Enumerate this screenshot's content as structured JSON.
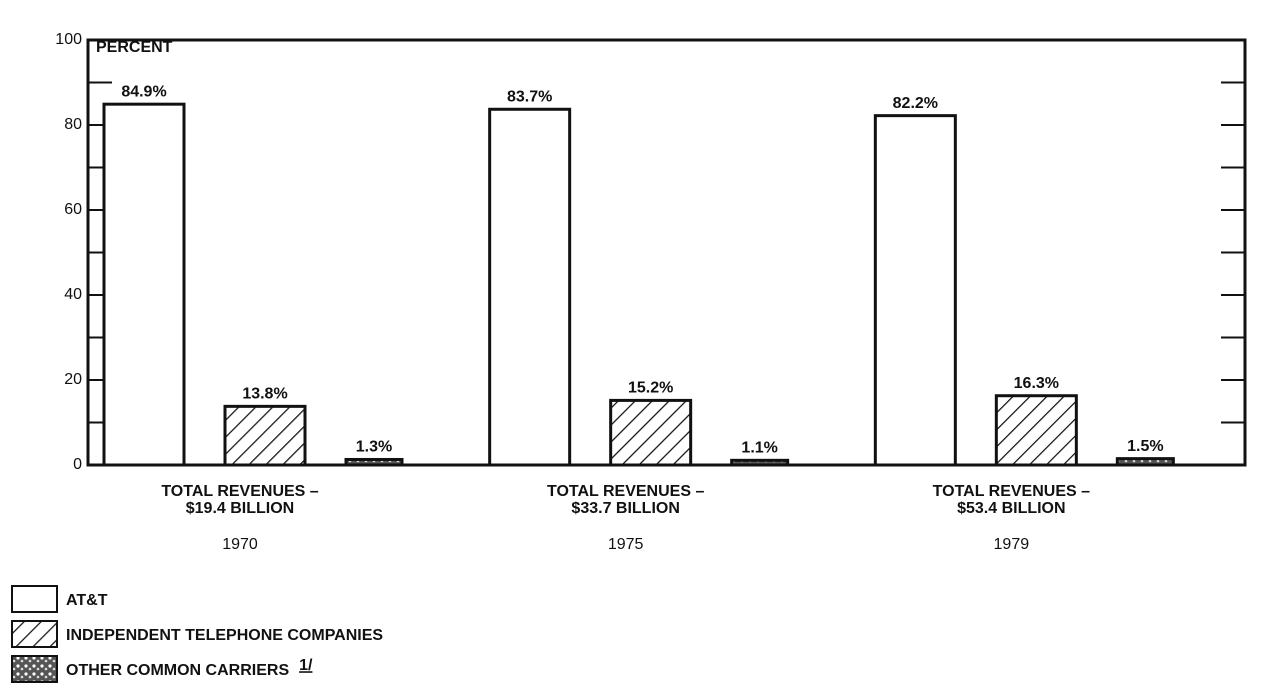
{
  "chart_data": {
    "type": "bar",
    "y_axis_label": "PERCENT",
    "categories": [
      "1970",
      "1975",
      "1979"
    ],
    "category_notes": [
      [
        "TOTAL REVENUES –",
        "$19.4 BILLION"
      ],
      [
        "TOTAL REVENUES –",
        "$33.7 BILLION"
      ],
      [
        "TOTAL REVENUES –",
        "$53.4 BILLION"
      ]
    ],
    "series": [
      {
        "name": "AT&T",
        "color": "#ffffff",
        "pattern": "none",
        "values": [
          84.9,
          83.7,
          82.2
        ],
        "value_labels": [
          "84.9%",
          "83.7%",
          "82.2%"
        ]
      },
      {
        "name": "INDEPENDENT TELEPHONE COMPANIES",
        "color": "#ffffff",
        "pattern": "hatch",
        "values": [
          13.8,
          15.2,
          16.3
        ],
        "value_labels": [
          "13.8%",
          "15.2%",
          "16.3%"
        ]
      },
      {
        "name": "OTHER COMMON CARRIERS",
        "color": "#ffffff",
        "pattern": "speckle",
        "values": [
          1.3,
          1.1,
          1.5
        ],
        "value_labels": [
          "1.3%",
          "1.1%",
          "1.5%"
        ]
      }
    ],
    "legend_footnote": "1/",
    "ylim": [
      0,
      100
    ],
    "yticks": [
      0,
      20,
      40,
      60,
      80,
      100
    ],
    "minor_yticks": [
      10,
      30,
      50,
      70,
      90
    ],
    "legend": "bottom-left"
  }
}
